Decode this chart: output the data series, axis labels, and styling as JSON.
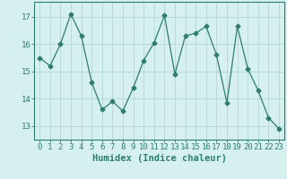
{
  "x": [
    0,
    1,
    2,
    3,
    4,
    5,
    6,
    7,
    8,
    9,
    10,
    11,
    12,
    13,
    14,
    15,
    16,
    17,
    18,
    19,
    20,
    21,
    22,
    23
  ],
  "y": [
    15.5,
    15.2,
    16.0,
    17.1,
    16.3,
    14.6,
    13.6,
    13.9,
    13.55,
    14.4,
    15.4,
    16.05,
    17.05,
    14.9,
    16.3,
    16.4,
    16.65,
    15.6,
    13.85,
    16.65,
    15.1,
    14.3,
    13.3,
    12.9
  ],
  "line_color": "#2e7d6e",
  "marker": "D",
  "marker_size": 2.5,
  "bg_color": "#d5f0ee",
  "grid_color": "#b8dbd8",
  "xlabel": "Humidex (Indice chaleur)",
  "ylim": [
    12.5,
    17.55
  ],
  "xlim": [
    -0.5,
    23.5
  ],
  "yticks": [
    13,
    14,
    15,
    16,
    17
  ],
  "xticks": [
    0,
    1,
    2,
    3,
    4,
    5,
    6,
    7,
    8,
    9,
    10,
    11,
    12,
    13,
    14,
    15,
    16,
    17,
    18,
    19,
    20,
    21,
    22,
    23
  ],
  "tick_color": "#2e7d6e",
  "label_fontsize": 7.5,
  "tick_fontsize": 6.5
}
